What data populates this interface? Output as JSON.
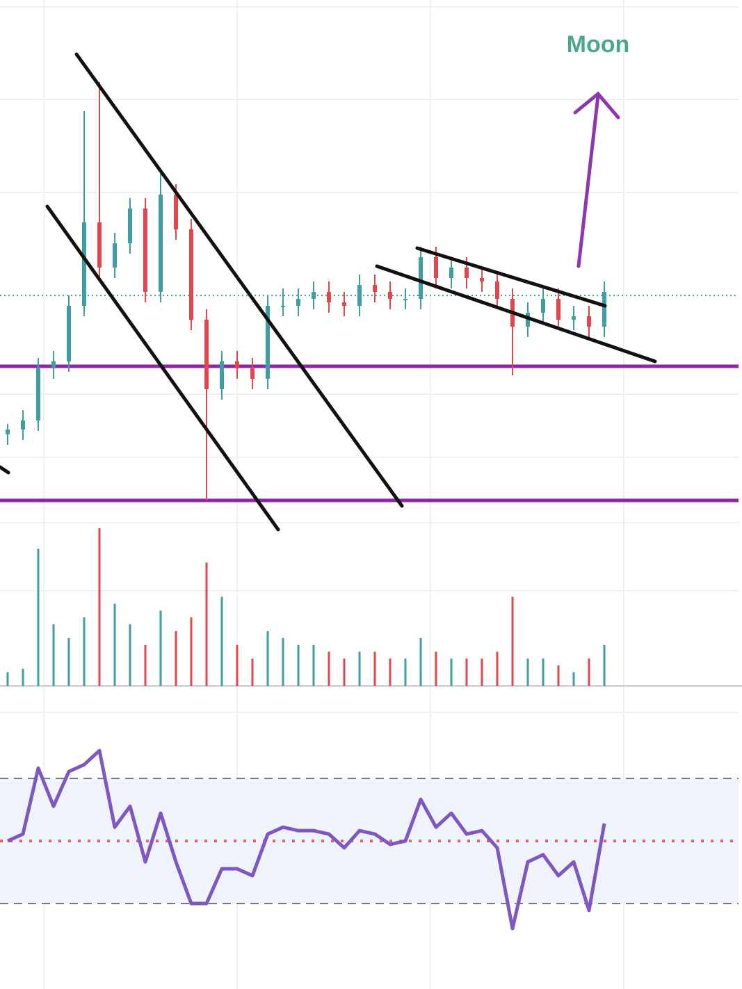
{
  "chart_data": {
    "type": "candlestick",
    "annotation": "Moon",
    "open": [
      135,
      142,
      155,
      230,
      240,
      320,
      440,
      375,
      410,
      460,
      340,
      480,
      430,
      300,
      200,
      240,
      230,
      215,
      320,
      320,
      330,
      340,
      325,
      320,
      350,
      340,
      330,
      330,
      390,
      360,
      375,
      360,
      355,
      330,
      290,
      310,
      330,
      300,
      305,
      290
    ],
    "high": [
      150,
      170,
      245,
      255,
      335,
      600,
      642,
      425,
      475,
      475,
      510,
      495,
      445,
      315,
      255,
      255,
      245,
      335,
      345,
      345,
      355,
      355,
      340,
      365,
      365,
      355,
      345,
      405,
      405,
      390,
      390,
      375,
      370,
      345,
      325,
      345,
      345,
      320,
      320,
      355
    ],
    "low": [
      120,
      127,
      140,
      215,
      225,
      305,
      360,
      360,
      395,
      325,
      325,
      415,
      285,
      40,
      185,
      215,
      200,
      200,
      305,
      305,
      315,
      310,
      305,
      305,
      325,
      315,
      315,
      315,
      345,
      345,
      345,
      340,
      315,
      220,
      275,
      295,
      285,
      285,
      275,
      275
    ],
    "close": [
      142,
      155,
      230,
      240,
      320,
      440,
      375,
      410,
      460,
      340,
      480,
      430,
      300,
      200,
      240,
      230,
      215,
      320,
      320,
      330,
      340,
      325,
      320,
      350,
      340,
      330,
      330,
      390,
      360,
      375,
      360,
      355,
      330,
      290,
      310,
      330,
      300,
      305,
      290,
      340
    ],
    "up_color": "#3f9ea0",
    "down_color": "#e0474c",
    "ylim": [
      0,
      760
    ],
    "levels": [
      233,
      40
    ],
    "level_color": "#8e24aa",
    "volume": [
      20,
      25,
      200,
      90,
      70,
      100,
      230,
      120,
      90,
      60,
      110,
      80,
      100,
      180,
      130,
      60,
      40,
      80,
      70,
      60,
      60,
      50,
      40,
      50,
      50,
      40,
      40,
      70,
      50,
      40,
      40,
      40,
      50,
      130,
      40,
      40,
      30,
      20,
      40,
      60
    ],
    "volume_ylim": [
      0,
      230
    ],
    "rsi": [
      50,
      52.2,
      73.3,
      61.1,
      72.2,
      74.4,
      78.9,
      54.4,
      61.1,
      43.3,
      58.9,
      43.3,
      30,
      30,
      41.1,
      41.1,
      38.9,
      52.2,
      54.4,
      53.3,
      53.3,
      52.2,
      47.8,
      53.3,
      52.2,
      48.9,
      50,
      63.3,
      54.4,
      58.9,
      52.2,
      53.3,
      47.8,
      22,
      43.3,
      45.6,
      38.9,
      43.3,
      27.8,
      55.6
    ],
    "rsi_color": "#7e57c2",
    "rsi_ylim": [
      10,
      90
    ],
    "rsi_band": [
      30,
      70
    ],
    "rsi_mid": 50
  }
}
